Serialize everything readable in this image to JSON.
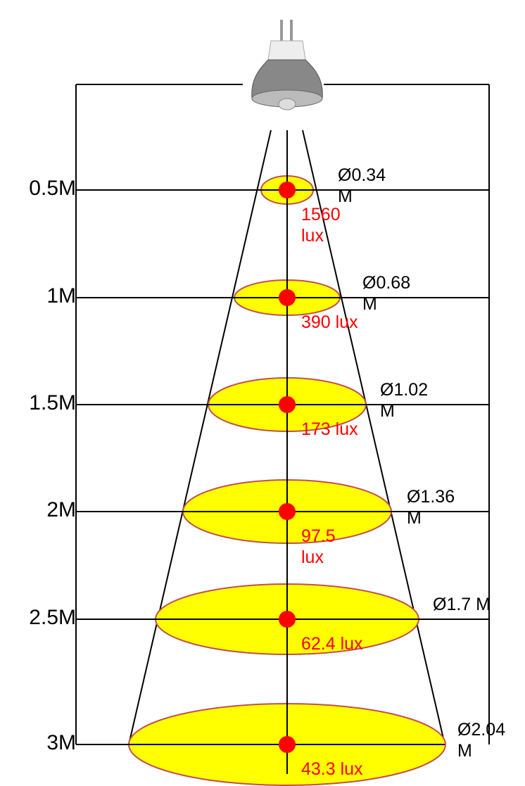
{
  "levels": [
    {
      "distance": "0.5M",
      "diameter": "Ø0.34 M",
      "lux": "1560 lux"
    },
    {
      "distance": "1M",
      "diameter": "Ø0.68 M",
      "lux": "390 lux"
    },
    {
      "distance": "1.5M",
      "diameter": "Ø1.02 M",
      "lux": "173 lux"
    },
    {
      "distance": "2M",
      "diameter": "Ø1.36 M",
      "lux": "97.5 lux"
    },
    {
      "distance": "2.5M",
      "diameter": "Ø1.7 M",
      "lux": "62.4 lux"
    },
    {
      "distance": "3M",
      "diameter": "Ø2.04 M",
      "lux": "43.3 lux"
    }
  ]
}
